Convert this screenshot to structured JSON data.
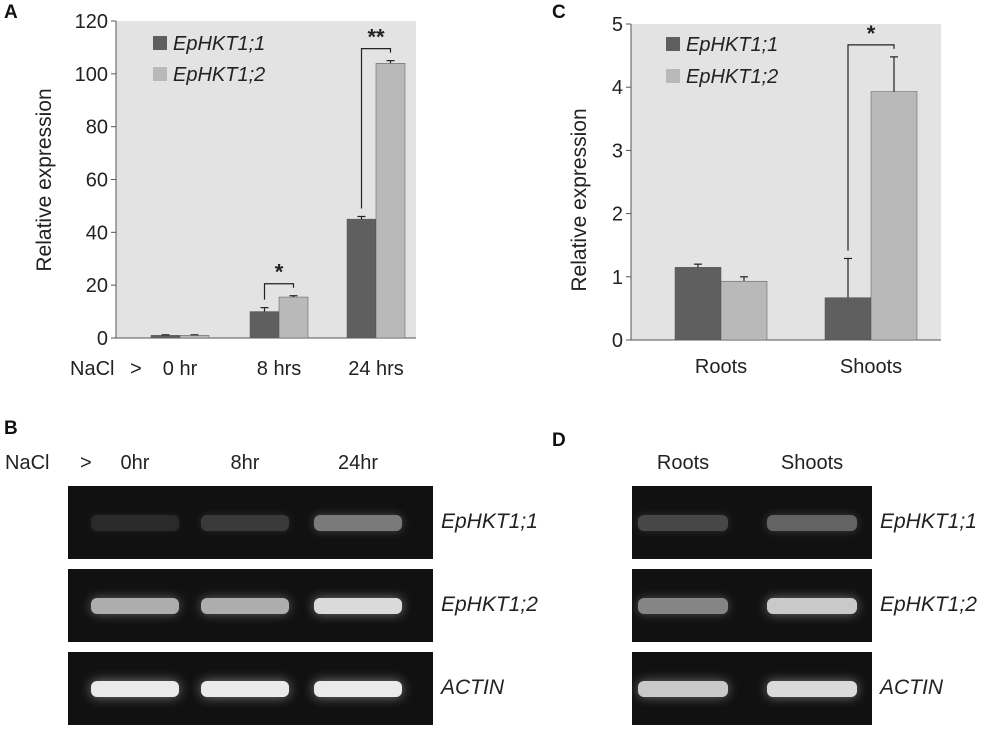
{
  "panels": {
    "a": {
      "letter": "A"
    },
    "b": {
      "letter": "B"
    },
    "c": {
      "letter": "C"
    },
    "d": {
      "letter": "D"
    }
  },
  "legend": {
    "series1": "EpHKT1;1",
    "series2": "EpHKT1;2"
  },
  "colors": {
    "series1": "#5f5f5f",
    "series2": "#b9b9b9",
    "plot_bg": "#e3e3e3"
  },
  "chart_data": [
    {
      "panel": "A",
      "type": "bar",
      "ylabel": "Relative expression",
      "xlabel_prefix": "NaCl",
      "xlabel_arrow": ">",
      "categories": [
        "0 hr",
        "8 hrs",
        "24 hrs"
      ],
      "series": [
        {
          "name": "EpHKT1;1",
          "values": [
            1,
            10,
            45
          ],
          "errors": [
            0.2,
            1.5,
            1.0
          ]
        },
        {
          "name": "EpHKT1;2",
          "values": [
            1,
            15.5,
            104
          ],
          "errors": [
            0.2,
            0.5,
            1.0
          ]
        }
      ],
      "ylim": [
        0,
        120
      ],
      "yticks": [
        "0",
        "20",
        "40",
        "60",
        "80",
        "100",
        "120"
      ],
      "significance": [
        {
          "category": "8 hrs",
          "label": "*"
        },
        {
          "category": "24 hrs",
          "label": "**"
        }
      ],
      "legend_position": "top-left"
    },
    {
      "panel": "C",
      "type": "bar",
      "ylabel": "Relative expression",
      "categories": [
        "Roots",
        "Shoots"
      ],
      "series": [
        {
          "name": "EpHKT1;1",
          "values": [
            1.15,
            0.67
          ],
          "errors": [
            0.05,
            0.62
          ]
        },
        {
          "name": "EpHKT1;2",
          "values": [
            0.93,
            3.93
          ],
          "errors": [
            0.07,
            0.55
          ]
        }
      ],
      "ylim": [
        0,
        5
      ],
      "yticks": [
        "0",
        "1",
        "2",
        "3",
        "4",
        "5"
      ],
      "significance": [
        {
          "category": "Shoots",
          "label": "*"
        }
      ],
      "legend_position": "top-left"
    }
  ],
  "gels": {
    "b": {
      "treatment": "NaCl",
      "arrow": ">",
      "lanes": [
        "0hr",
        "8hr",
        "24hr"
      ],
      "rows": [
        {
          "gene": "EpHKT1;1",
          "intensities": [
            0.1,
            0.22,
            0.55
          ]
        },
        {
          "gene": "EpHKT1;2",
          "intensities": [
            0.75,
            0.75,
            0.9
          ]
        },
        {
          "gene": "ACTIN",
          "intensities": [
            0.95,
            0.95,
            0.95
          ]
        }
      ]
    },
    "d": {
      "lanes": [
        "Roots",
        "Shoots"
      ],
      "rows": [
        {
          "gene": "EpHKT1;1",
          "intensities": [
            0.3,
            0.45
          ]
        },
        {
          "gene": "EpHKT1;2",
          "intensities": [
            0.6,
            0.85
          ]
        },
        {
          "gene": "ACTIN",
          "intensities": [
            0.85,
            0.9
          ]
        }
      ]
    }
  }
}
